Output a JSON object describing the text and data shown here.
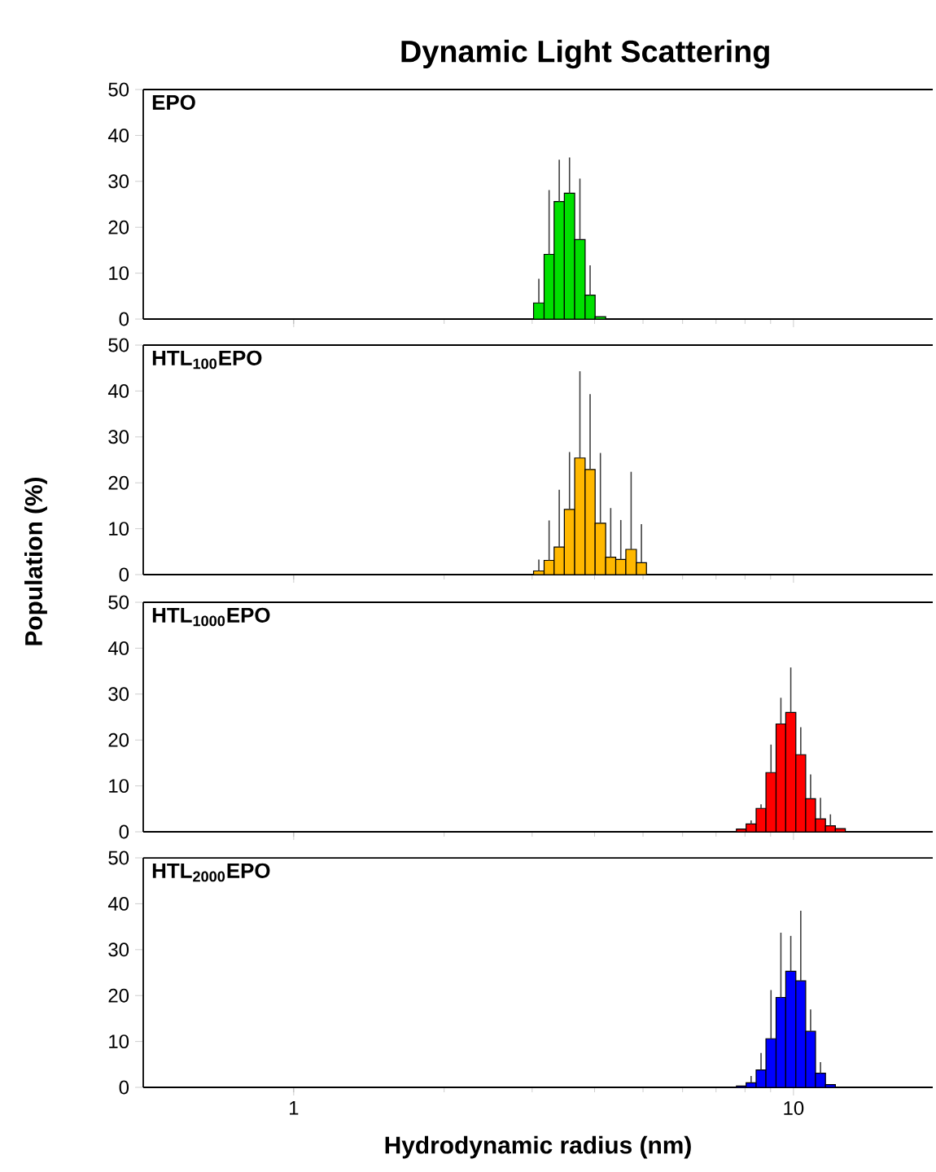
{
  "chart_data": [
    {
      "type": "histogram",
      "title": "Dynamic Light Scattering",
      "annotations": [
        "EPO"
      ],
      "color": "#00e000",
      "bins": [
        3.02,
        3.17,
        3.32,
        3.48,
        3.65,
        3.83,
        4.01,
        4.21
      ],
      "values": [
        3.5,
        14.1,
        25.6,
        27.4,
        17.3,
        5.2,
        0.5
      ],
      "errors": [
        [
          3.5,
          8.8
        ],
        [
          14.1,
          28.1
        ],
        [
          25.6,
          34.7
        ],
        [
          27.4,
          35.2
        ],
        [
          17.3,
          30.6
        ],
        [
          5.2,
          11.7
        ],
        null
      ],
      "xlim": [
        0.5,
        19
      ],
      "ylim": [
        0,
        50
      ],
      "xticks": [
        1,
        10
      ],
      "yticks": [
        0,
        10,
        20,
        30,
        40,
        50
      ],
      "log": "x",
      "tick_labels": "y"
    },
    {
      "type": "histogram",
      "ylabel": "Population (%)",
      "annotations": [
        "HTL$_{100}$EPO"
      ],
      "color": "#ffb800",
      "bins": [
        3.02,
        3.17,
        3.32,
        3.48,
        3.65,
        3.83,
        4.01,
        4.21,
        4.41,
        4.62,
        4.85,
        5.08
      ],
      "values": [
        0.8,
        3.1,
        6.0,
        14.2,
        25.4,
        22.9,
        11.2,
        3.8,
        3.3,
        5.5,
        2.6
      ],
      "errors": [
        [
          0.8,
          3.3
        ],
        [
          3.1,
          11.8
        ],
        [
          6.0,
          18.5
        ],
        [
          14.2,
          26.7
        ],
        [
          25.4,
          44.3
        ],
        [
          22.9,
          39.3
        ],
        [
          11.2,
          26.5
        ],
        [
          3.8,
          14.5
        ],
        [
          3.3,
          11.9
        ],
        [
          5.5,
          22.4
        ],
        [
          2.6,
          11.0
        ]
      ],
      "xlim": [
        0.5,
        19
      ],
      "ylim": [
        0,
        50
      ],
      "xticks": [
        1,
        10
      ],
      "yticks": [
        0,
        10,
        20,
        30,
        40,
        50
      ],
      "log": "x",
      "tick_labels": "y"
    },
    {
      "type": "histogram",
      "annotations": [
        "HTL$_{1000}$EPO"
      ],
      "color": "#ff0000",
      "bins": [
        7.69,
        8.04,
        8.42,
        8.81,
        9.23,
        9.65,
        10.11,
        10.58,
        11.07,
        11.59,
        12.13,
        12.7
      ],
      "values": [
        0.6,
        1.7,
        5.1,
        12.9,
        23.5,
        26.0,
        16.8,
        7.2,
        2.8,
        1.3,
        0.7
      ],
      "errors": [
        null,
        [
          1.7,
          2.5
        ],
        [
          5.1,
          6.0
        ],
        [
          12.9,
          19.0
        ],
        [
          23.5,
          29.2
        ],
        [
          26.0,
          35.8
        ],
        [
          16.8,
          22.8
        ],
        [
          7.2,
          12.5
        ],
        [
          2.8,
          7.4
        ],
        [
          1.3,
          3.8
        ],
        null
      ],
      "xlim": [
        0.5,
        19
      ],
      "ylim": [
        0,
        50
      ],
      "xticks": [
        1,
        10
      ],
      "yticks": [
        0,
        10,
        20,
        30,
        40,
        50
      ],
      "log": "x",
      "tick_labels": "y"
    },
    {
      "type": "histogram",
      "xlabel": "Hydrodynamic radius (nm)",
      "annotations": [
        "HTL$_{2000}$EPO"
      ],
      "color": "#0000ff",
      "bins": [
        7.69,
        8.04,
        8.42,
        8.81,
        9.23,
        9.65,
        10.11,
        10.58,
        11.07,
        11.59,
        12.13
      ],
      "values": [
        0.3,
        1.0,
        3.8,
        10.6,
        19.6,
        25.3,
        23.2,
        12.2,
        3.1,
        0.6
      ],
      "errors": [
        null,
        [
          1.0,
          2.5
        ],
        [
          3.8,
          7.5
        ],
        [
          10.6,
          21.2
        ],
        [
          19.6,
          33.7
        ],
        [
          25.3,
          33.0
        ],
        [
          23.2,
          38.5
        ],
        [
          12.2,
          17.0
        ],
        [
          3.1,
          5.5
        ],
        null
      ],
      "xlim": [
        0.5,
        19
      ],
      "ylim": [
        0,
        50
      ],
      "xticks": [
        1,
        10
      ],
      "yticks": [
        0,
        10,
        20,
        30,
        40,
        50
      ],
      "log": "x"
    }
  ]
}
